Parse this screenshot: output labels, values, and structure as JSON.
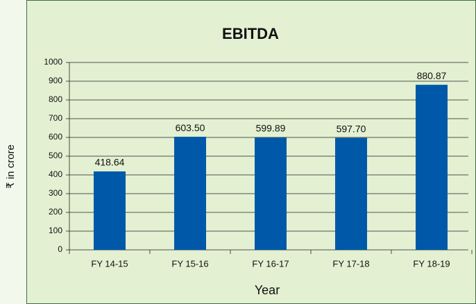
{
  "chart_data": {
    "type": "bar",
    "title": "EBITDA",
    "x_label": "Year",
    "y_label": "₹ in crore",
    "categories": [
      "FY 14-15",
      "FY 15-16",
      "FY 16-17",
      "FY 17-18",
      "FY 18-19"
    ],
    "values": [
      418.64,
      603.5,
      599.89,
      597.7,
      880.87
    ],
    "value_labels": [
      "418.64",
      "603.50",
      "599.89",
      "597.70",
      "880.87"
    ],
    "color": "#0059a8",
    "ylim": [
      0,
      1000
    ],
    "yticks": [
      0,
      100,
      200,
      300,
      400,
      500,
      600,
      700,
      800,
      900,
      1000
    ],
    "grid": true
  }
}
